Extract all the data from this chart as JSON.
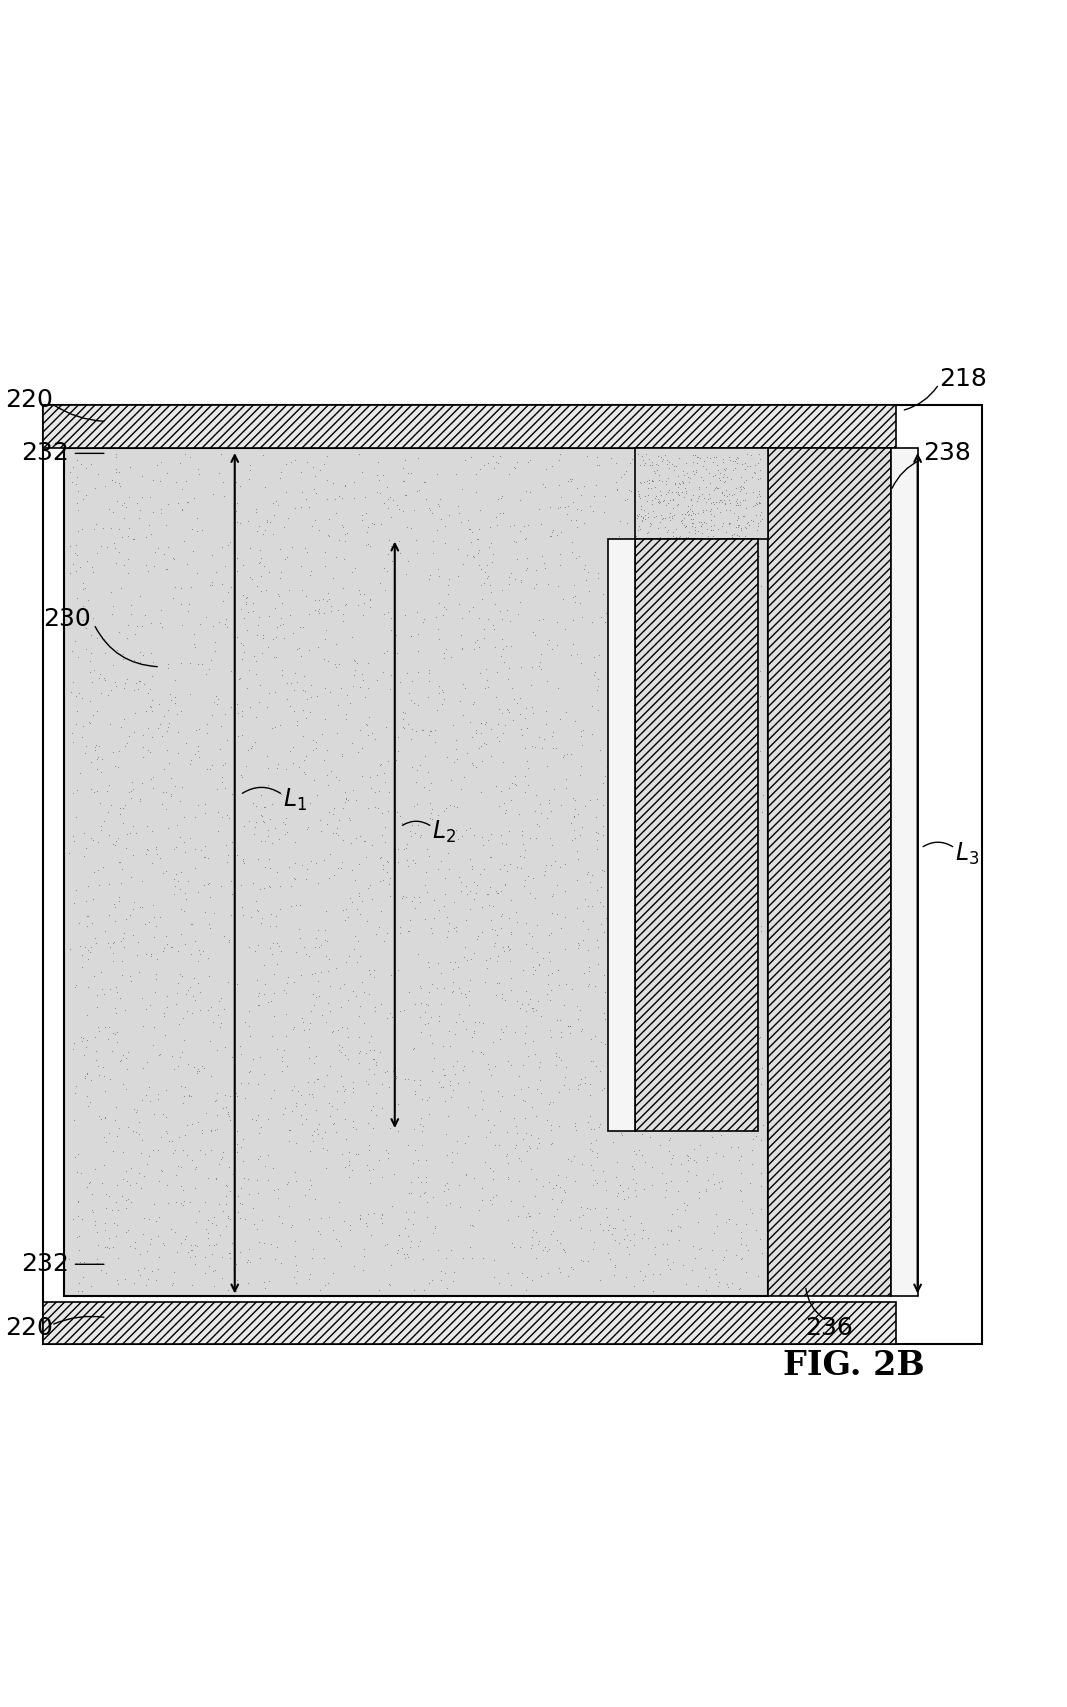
{
  "fig_label": "FIG. 2B",
  "background_color": "#ffffff",
  "labels": {
    "220_top_left": "220",
    "220_bottom_left": "220",
    "232_top": "232",
    "232_bottom": "232",
    "230": "230",
    "218": "218",
    "238": "238",
    "236": "236",
    "L1": "L1",
    "L2": "L2",
    "L3": "L3"
  }
}
